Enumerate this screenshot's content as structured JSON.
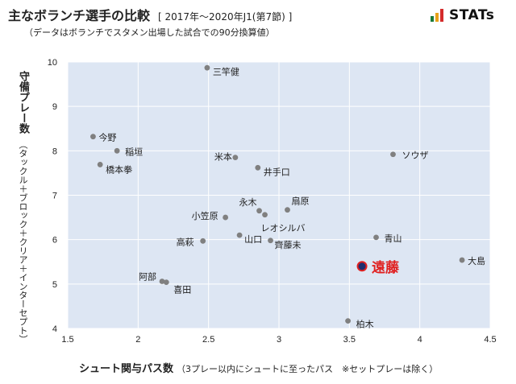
{
  "header": {
    "title": "主なボランチ選手の比較",
    "period": "[ 2017年～2020年J1(第7節) ]",
    "subtitle": "（データはボランチでスタメン出場した試合での90分換算値）",
    "logo_text": "STATs",
    "logo_bar_colors": [
      "#1a7a3a",
      "#e8a21a",
      "#d42b2b"
    ]
  },
  "chart_data": {
    "type": "scatter",
    "xlabel": "シュート関与パス数",
    "xlabel_note": "（3プレー以内にシュートに至ったパス　※セットプレーは除く）",
    "ylabel": "守備プレー数",
    "ylabel_note": "（タックル＋ブロック＋クリア＋インターセプト）",
    "xlim": [
      1.5,
      4.5
    ],
    "ylim": [
      4,
      10
    ],
    "xticks": [
      "1.5",
      "2",
      "2.5",
      "3",
      "3.5",
      "4",
      "4.5"
    ],
    "yticks": [
      "4",
      "5",
      "6",
      "7",
      "8",
      "9",
      "10"
    ],
    "grid": true,
    "colors": {
      "plot_bg": "#dde6f3",
      "point": "#808080",
      "highlight": "#e02020",
      "highlight_fill": "#1f2d6e",
      "grid": "#ffffff"
    },
    "points": [
      {
        "name": "三竿健",
        "x": 2.49,
        "y": 9.87
      },
      {
        "name": "今野",
        "x": 1.68,
        "y": 8.32
      },
      {
        "name": "稲垣",
        "x": 1.85,
        "y": 8.0
      },
      {
        "name": "橋本拳",
        "x": 1.73,
        "y": 7.69
      },
      {
        "name": "米本",
        "x": 2.69,
        "y": 7.85
      },
      {
        "name": "井手口",
        "x": 2.85,
        "y": 7.62
      },
      {
        "name": "ソウザ",
        "x": 3.81,
        "y": 7.92
      },
      {
        "name": "永木",
        "x": 2.86,
        "y": 6.65
      },
      {
        "name": "扇原",
        "x": 3.06,
        "y": 6.67
      },
      {
        "name": "小笠原",
        "x": 2.62,
        "y": 6.5
      },
      {
        "name": "レオシルバ",
        "x": 2.9,
        "y": 6.56
      },
      {
        "name": "山口",
        "x": 2.72,
        "y": 6.1
      },
      {
        "name": "高萩",
        "x": 2.46,
        "y": 5.97
      },
      {
        "name": "齊藤未",
        "x": 2.94,
        "y": 5.98
      },
      {
        "name": "青山",
        "x": 3.69,
        "y": 6.05
      },
      {
        "name": "大島",
        "x": 4.3,
        "y": 5.54
      },
      {
        "name": "遠藤",
        "x": 3.59,
        "y": 5.4,
        "highlight": true
      },
      {
        "name": "阿部",
        "x": 2.17,
        "y": 5.06
      },
      {
        "name": "喜田",
        "x": 2.2,
        "y": 5.04
      },
      {
        "name": "柏木",
        "x": 3.49,
        "y": 4.17
      }
    ]
  }
}
